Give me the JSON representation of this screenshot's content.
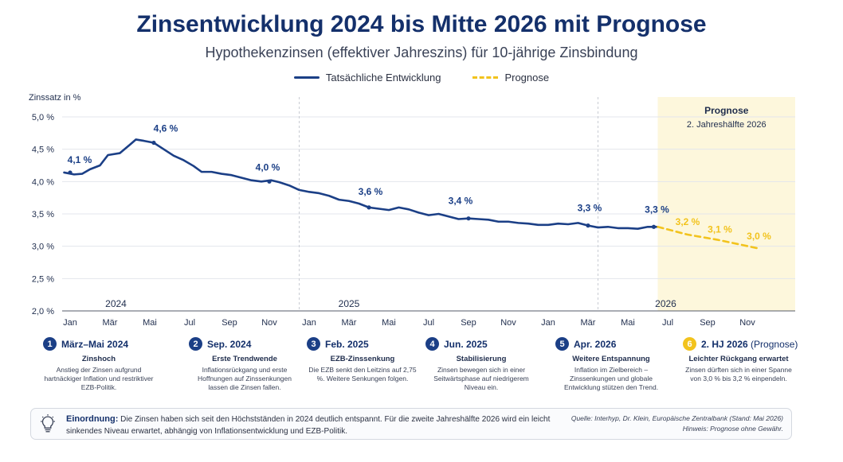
{
  "title": "Zinsentwicklung 2024 bis Mitte 2026 mit Prognose",
  "subtitle": "Hypothekenzinsen (effektiver Jahreszins) für 10-jährige Zinsbindung",
  "legend": {
    "actual": "Tatsächliche Entwicklung",
    "forecast": "Prognose"
  },
  "colors": {
    "actual": "#1b3f86",
    "forecast": "#f2c31d",
    "forecast_band": "#fdf7dc",
    "title": "#14306b"
  },
  "chart_data": {
    "type": "line",
    "ylabel": "Zinssatz in %",
    "ylim": [
      2.0,
      5.0
    ],
    "yticks": [
      {
        "v": 5.0,
        "label": "5,0 %"
      },
      {
        "v": 4.5,
        "label": "4,5 %"
      },
      {
        "v": 4.0,
        "label": "4,0 %"
      },
      {
        "v": 3.5,
        "label": "3,5 %"
      },
      {
        "v": 3.0,
        "label": "3,0 %"
      },
      {
        "v": 2.5,
        "label": "2,5 %"
      },
      {
        "v": 2.0,
        "label": "2,0 %"
      }
    ],
    "xlim": [
      0,
      35
    ],
    "xticks": [
      {
        "m": 0,
        "label": "Jan"
      },
      {
        "m": 2,
        "label": "Mär"
      },
      {
        "m": 4,
        "label": "Mai"
      },
      {
        "m": 6,
        "label": "Jul"
      },
      {
        "m": 8,
        "label": "Sep"
      },
      {
        "m": 10,
        "label": "Nov"
      },
      {
        "m": 12,
        "label": "Jan"
      },
      {
        "m": 14,
        "label": "Mär"
      },
      {
        "m": 16,
        "label": "Mai"
      },
      {
        "m": 18,
        "label": "Jul"
      },
      {
        "m": 20,
        "label": "Sep"
      },
      {
        "m": 22,
        "label": "Nov"
      },
      {
        "m": 24,
        "label": "Jan"
      },
      {
        "m": 26,
        "label": "Mär"
      },
      {
        "m": 28,
        "label": "Mai"
      },
      {
        "m": 30,
        "label": "Jul"
      },
      {
        "m": 32,
        "label": "Sep"
      },
      {
        "m": 34,
        "label": "Nov"
      }
    ],
    "years": [
      {
        "m": 2.3,
        "label": "2024"
      },
      {
        "m": 14.0,
        "label": "2025"
      },
      {
        "m": 29.9,
        "label": "2026"
      }
    ],
    "year_dividers": [
      11.5,
      26.5
    ],
    "forecast_band": {
      "from": 29.5,
      "to": 35,
      "title": "Prognose",
      "subtitle": "2. Jahreshälfte 2026"
    },
    "series": [
      {
        "name": "Tatsächliche Entwicklung",
        "points": [
          [
            -0.3,
            4.14
          ],
          [
            0.2,
            4.11
          ],
          [
            0.6,
            4.12
          ],
          [
            1.0,
            4.19
          ],
          [
            1.5,
            4.25
          ],
          [
            1.9,
            4.41
          ],
          [
            2.5,
            4.44
          ],
          [
            3.0,
            4.57
          ],
          [
            3.3,
            4.65
          ],
          [
            3.7,
            4.63
          ],
          [
            4.2,
            4.6
          ],
          [
            4.7,
            4.5
          ],
          [
            5.2,
            4.4
          ],
          [
            5.7,
            4.33
          ],
          [
            6.2,
            4.24
          ],
          [
            6.6,
            4.15
          ],
          [
            7.1,
            4.15
          ],
          [
            7.6,
            4.12
          ],
          [
            8.1,
            4.1
          ],
          [
            8.6,
            4.06
          ],
          [
            9.1,
            4.02
          ],
          [
            9.6,
            4.0
          ],
          [
            10.1,
            4.02
          ],
          [
            10.5,
            3.99
          ],
          [
            11.0,
            3.94
          ],
          [
            11.5,
            3.87
          ],
          [
            12.0,
            3.84
          ],
          [
            12.5,
            3.82
          ],
          [
            13.0,
            3.78
          ],
          [
            13.5,
            3.72
          ],
          [
            14.0,
            3.7
          ],
          [
            14.5,
            3.66
          ],
          [
            15.0,
            3.6
          ],
          [
            15.5,
            3.58
          ],
          [
            16.0,
            3.56
          ],
          [
            16.5,
            3.6
          ],
          [
            17.0,
            3.57
          ],
          [
            17.5,
            3.52
          ],
          [
            18.0,
            3.48
          ],
          [
            18.5,
            3.5
          ],
          [
            19.0,
            3.46
          ],
          [
            19.5,
            3.42
          ],
          [
            20.0,
            3.43
          ],
          [
            20.5,
            3.42
          ],
          [
            21.0,
            3.41
          ],
          [
            21.5,
            3.38
          ],
          [
            22.0,
            3.38
          ],
          [
            22.5,
            3.36
          ],
          [
            23.0,
            3.35
          ],
          [
            23.5,
            3.33
          ],
          [
            24.0,
            3.33
          ],
          [
            24.5,
            3.35
          ],
          [
            25.0,
            3.34
          ],
          [
            25.5,
            3.36
          ],
          [
            26.0,
            3.32
          ],
          [
            26.5,
            3.29
          ],
          [
            27.0,
            3.3
          ],
          [
            27.5,
            3.28
          ],
          [
            28.0,
            3.28
          ],
          [
            28.5,
            3.27
          ],
          [
            29.0,
            3.3
          ],
          [
            29.5,
            3.3
          ]
        ]
      },
      {
        "name": "Prognose",
        "points": [
          [
            29.5,
            3.3
          ],
          [
            31.0,
            3.18
          ],
          [
            32.5,
            3.1
          ],
          [
            34.5,
            2.97
          ]
        ]
      }
    ],
    "annotations": [
      {
        "m": 0.0,
        "v": 4.14,
        "label": "4,1 %",
        "dx": 12,
        "dy": -12,
        "forecast": false
      },
      {
        "m": 4.2,
        "v": 4.6,
        "label": "4,6 %",
        "dx": 15,
        "dy": -14,
        "forecast": false
      },
      {
        "m": 10.0,
        "v": 4.0,
        "label": "4,0 %",
        "dx": -2,
        "dy": -14,
        "forecast": false
      },
      {
        "m": 15.0,
        "v": 3.6,
        "label": "3,6 %",
        "dx": 2,
        "dy": -16,
        "forecast": false
      },
      {
        "m": 20.0,
        "v": 3.43,
        "label": "3,4 %",
        "dx": -10,
        "dy": -18,
        "forecast": false
      },
      {
        "m": 26.0,
        "v": 3.32,
        "label": "3,3 %",
        "dx": 2,
        "dy": -18,
        "forecast": false
      },
      {
        "m": 29.3,
        "v": 3.3,
        "label": "3,3 %",
        "dx": 4,
        "dy": -18,
        "forecast": false
      },
      {
        "m": 31.0,
        "v": 3.18,
        "label": "3,2 %",
        "dx": 0,
        "dy": -12,
        "forecast": true
      },
      {
        "m": 32.5,
        "v": 3.1,
        "label": "3,1 %",
        "dx": 3,
        "dy": -9,
        "forecast": true
      },
      {
        "m": 34.5,
        "v": 2.97,
        "label": "3,0 %",
        "dx": 2,
        "dy": -11,
        "forecast": true
      }
    ],
    "grid": true
  },
  "events": [
    {
      "num": "1",
      "date": "März–Mai 2024",
      "title": "Zinshoch",
      "desc": "Anstieg der Zinsen aufgrund hartnäckiger Inflation und restriktiver EZB-Politik.",
      "forecast": false
    },
    {
      "num": "2",
      "date": "Sep. 2024",
      "title": "Erste Trendwende",
      "desc": "Inflationsrückgang und erste Hoffnungen auf Zinssenkungen lassen die Zinsen fallen.",
      "forecast": false
    },
    {
      "num": "3",
      "date": "Feb. 2025",
      "title": "EZB-Zinssenkung",
      "desc": "Die EZB senkt den Leitzins auf 2,75 %. Weitere Senkungen folgen.",
      "forecast": false
    },
    {
      "num": "4",
      "date": "Jun. 2025",
      "title": "Stabilisierung",
      "desc": "Zinsen bewegen sich in einer Seitwärtsphase auf niedrigerem Niveau ein.",
      "forecast": false
    },
    {
      "num": "5",
      "date": "Apr. 2026",
      "title": "Weitere Entspannung",
      "desc": "Inflation im Zielbereich – Zinssenkungen und globale Entwicklung stützen den Trend.",
      "forecast": false
    },
    {
      "num": "6",
      "date": "2. HJ 2026",
      "date_suffix": "(Prognose)",
      "title": "Leichter Rückgang erwartet",
      "desc": "Zinsen dürften sich in einer Spanne von 3,0 % bis 3,2 % einpendeln.",
      "forecast": true
    }
  ],
  "bottom": {
    "label": "Einordnung:",
    "text": "Die Zinsen haben sich seit den Höchstständen in 2024 deutlich entspannt. Für die zweite Jahreshälfte 2026 wird ein leicht sinkendes Niveau erwartet, abhängig von Inflationsentwicklung und EZB-Politik.",
    "source": "Quelle: Interhyp, Dr. Klein, Europäische Zentralbank (Stand: Mai 2026)",
    "note": "Hinweis: Prognose ohne Gewähr."
  },
  "icons": {
    "bottom": "lightbulb-icon"
  }
}
